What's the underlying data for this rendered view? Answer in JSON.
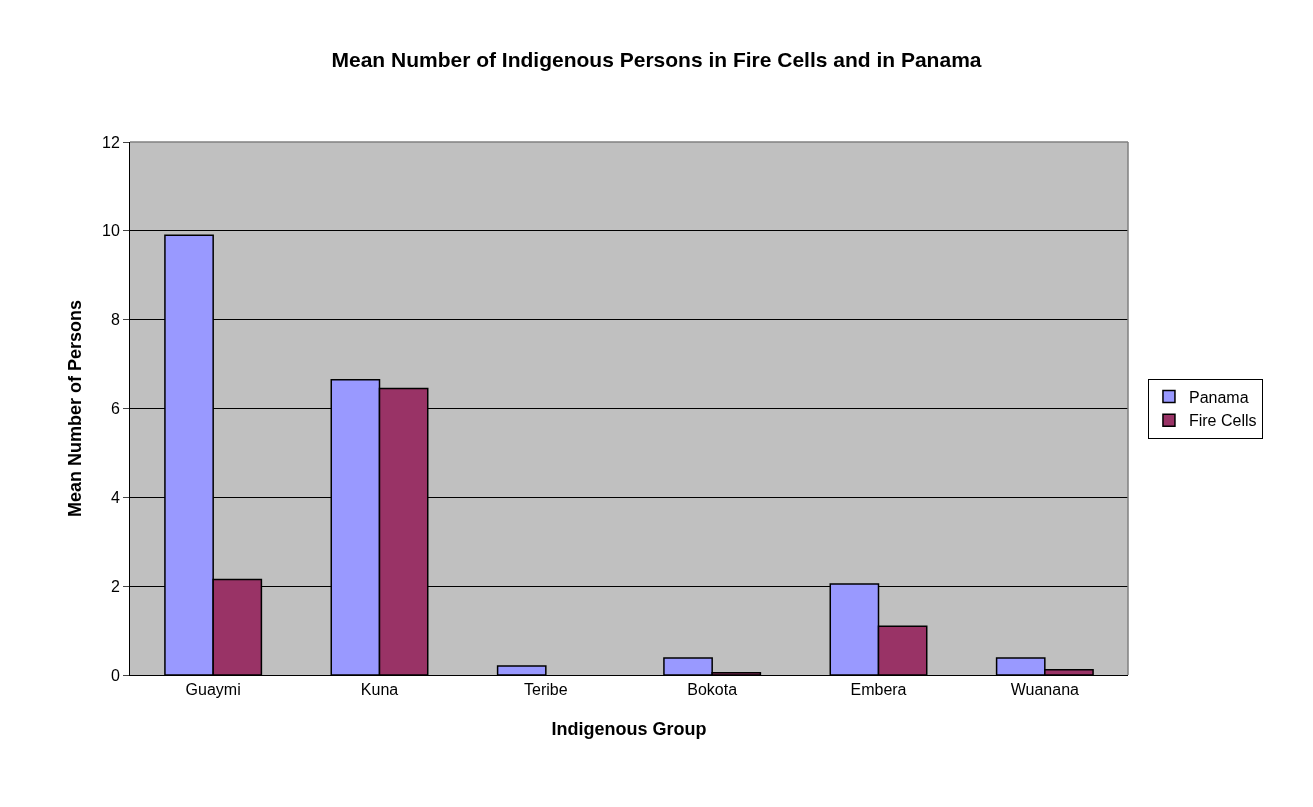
{
  "chart_data": {
    "type": "bar",
    "title": "Mean Number of Indigenous Persons in Fire Cells and in Panama",
    "xlabel": "Indigenous Group",
    "ylabel": "Mean Number of Persons",
    "categories": [
      "Guaymi",
      "Kuna",
      "Teribe",
      "Bokota",
      "Embera",
      "Wuanana"
    ],
    "series": [
      {
        "name": "Panama",
        "color": "#9999ff",
        "values": [
          9.9,
          6.65,
          0.2,
          0.38,
          2.05,
          0.38
        ]
      },
      {
        "name": "Fire Cells",
        "color": "#993366",
        "values": [
          2.15,
          6.45,
          null,
          0.05,
          1.1,
          0.12
        ]
      }
    ],
    "ylim": [
      0,
      12
    ],
    "yticks": [
      0,
      2,
      4,
      6,
      8,
      10,
      12
    ],
    "grid": "y",
    "legend": "right"
  }
}
